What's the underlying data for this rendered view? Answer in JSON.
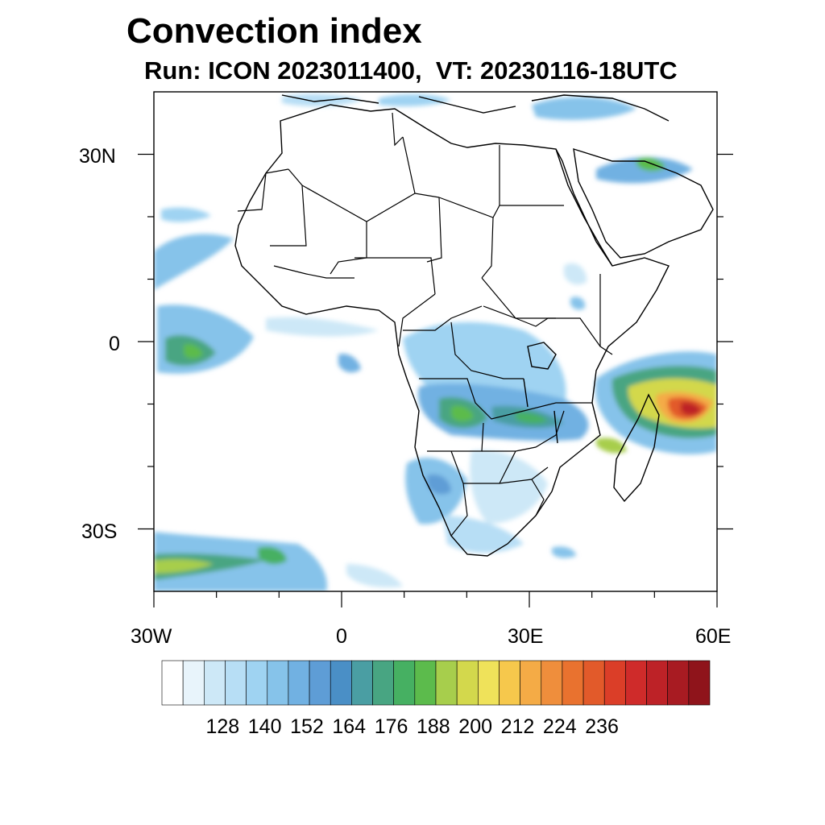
{
  "title": "Convection index",
  "subtitle": "Run: ICON 2023011400,  VT: 20230116-18UTC",
  "map": {
    "region": "Africa",
    "lat_range": [
      -40,
      40
    ],
    "lon_range": [
      -30,
      60
    ],
    "lat_labels": [
      "30N",
      "0",
      "30S"
    ],
    "lon_labels": [
      "30W",
      "0",
      "30E",
      "60E"
    ]
  },
  "colorbar": {
    "tick_labels": [
      "128",
      "140",
      "152",
      "164",
      "176",
      "188",
      "200",
      "212",
      "224",
      "236"
    ],
    "colors": [
      "#ffffff",
      "#e8f4fb",
      "#cde8f7",
      "#b7def5",
      "#9fd3f2",
      "#86c3ea",
      "#71b1e2",
      "#5e9dd6",
      "#4a8fc6",
      "#4a9ea3",
      "#48a582",
      "#46b062",
      "#5cbb4c",
      "#a7ce4c",
      "#d3d84c",
      "#efe25a",
      "#f6c84c",
      "#f4ab46",
      "#ef8e3c",
      "#e9722f",
      "#e25a2a",
      "#db3e28",
      "#cf2b2a",
      "#bd2227",
      "#a81b22",
      "#8f141b"
    ]
  },
  "colors": {
    "land_border": "#000000",
    "background": "#ffffff"
  }
}
